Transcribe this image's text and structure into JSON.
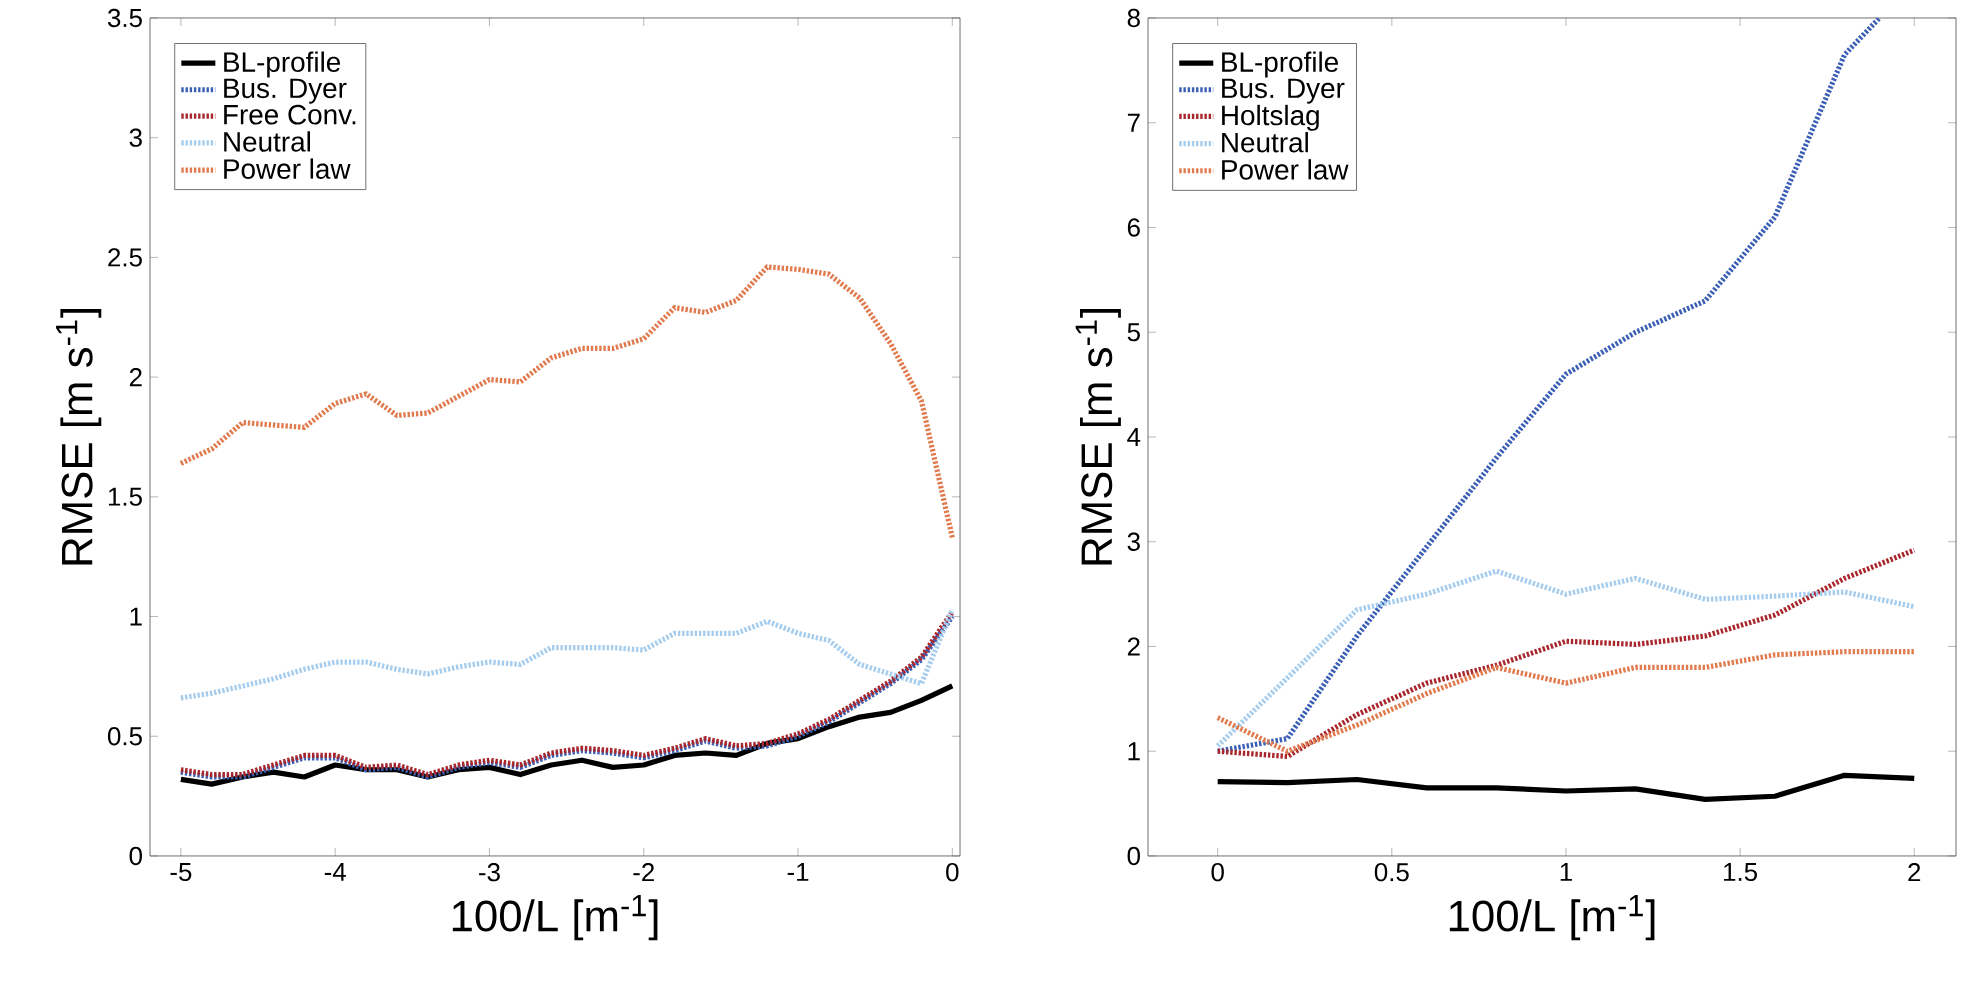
{
  "chart_data": [
    {
      "type": "line",
      "xlabel": "100/L [m$^{-1}$]",
      "ylabel": "RMSE [m s$^{-1}$]",
      "legend": "top left",
      "xlim": [
        -5.2,
        0.05
      ],
      "ylim": [
        0,
        3.5
      ],
      "xticks": [
        -5,
        -4,
        -3,
        -2,
        -1,
        0
      ],
      "yticks": [
        0,
        0.5,
        1,
        1.5,
        2,
        2.5,
        3,
        3.5
      ],
      "x": [
        -5,
        -4.8,
        -4.6,
        -4.4,
        -4.2,
        -4,
        -3.8,
        -3.6,
        -3.4,
        -3.2,
        -3,
        -2.8,
        -2.6,
        -2.4,
        -2.2,
        -2,
        -1.8,
        -1.6,
        -1.4,
        -1.2,
        -1,
        -0.8,
        -0.6,
        -0.4,
        -0.2,
        0
      ],
      "series": [
        {
          "name": "BL-profile",
          "color": "#000000",
          "line_style": "solid",
          "values": [
            0.32,
            0.3,
            0.33,
            0.35,
            0.33,
            0.38,
            0.36,
            0.36,
            0.33,
            0.36,
            0.37,
            0.34,
            0.38,
            0.4,
            0.37,
            0.38,
            0.42,
            0.43,
            0.42,
            0.47,
            0.49,
            0.54,
            0.58,
            0.6,
            0.65,
            0.71
          ]
        },
        {
          "name": "Bus. Dyer",
          "color": "#3a5fb5",
          "line_style": "dotted",
          "values": [
            0.35,
            0.33,
            0.33,
            0.37,
            0.41,
            0.41,
            0.36,
            0.37,
            0.33,
            0.37,
            0.39,
            0.37,
            0.42,
            0.44,
            0.43,
            0.41,
            0.44,
            0.48,
            0.45,
            0.46,
            0.5,
            0.56,
            0.64,
            0.72,
            0.82,
            1.0
          ]
        },
        {
          "name": "Free Conv.",
          "color": "#a8262c",
          "line_style": "dotted",
          "values": [
            0.36,
            0.34,
            0.34,
            0.38,
            0.42,
            0.42,
            0.37,
            0.38,
            0.34,
            0.38,
            0.4,
            0.38,
            0.43,
            0.45,
            0.44,
            0.42,
            0.45,
            0.49,
            0.46,
            0.47,
            0.51,
            0.57,
            0.65,
            0.73,
            0.83,
            1.02
          ]
        },
        {
          "name": "Neutral",
          "color": "#a6cdee",
          "line_style": "dotted",
          "values": [
            0.66,
            0.68,
            0.71,
            0.74,
            0.78,
            0.81,
            0.81,
            0.78,
            0.76,
            0.79,
            0.81,
            0.8,
            0.87,
            0.87,
            0.87,
            0.86,
            0.93,
            0.93,
            0.93,
            0.98,
            0.93,
            0.9,
            0.8,
            0.76,
            0.72,
            1.03
          ]
        },
        {
          "name": "Power law",
          "color": "#e07b4f",
          "line_style": "dotted",
          "values": [
            1.64,
            1.7,
            1.81,
            1.8,
            1.79,
            1.89,
            1.93,
            1.84,
            1.85,
            1.92,
            1.99,
            1.98,
            2.08,
            2.12,
            2.12,
            2.16,
            2.29,
            2.27,
            2.32,
            2.46,
            2.45,
            2.43,
            2.33,
            2.14,
            1.9,
            1.33
          ]
        }
      ]
    },
    {
      "type": "line",
      "xlabel": "100/L [m$^{-1}$]",
      "ylabel": "RMSE [m s$^{-1}$]",
      "legend": "top left",
      "xlim": [
        -0.2,
        2.12
      ],
      "ylim": [
        0,
        8
      ],
      "xticks": [
        0,
        0.5,
        1,
        1.5,
        2
      ],
      "yticks": [
        0,
        1,
        2,
        3,
        4,
        5,
        6,
        7,
        8
      ],
      "x": [
        0,
        0.2,
        0.4,
        0.6,
        0.8,
        1,
        1.2,
        1.4,
        1.6,
        1.8,
        2
      ],
      "series": [
        {
          "name": "BL-profile",
          "color": "#000000",
          "line_style": "solid",
          "values": [
            0.71,
            0.7,
            0.73,
            0.65,
            0.65,
            0.62,
            0.64,
            0.54,
            0.57,
            0.77,
            0.74
          ]
        },
        {
          "name": "Bus. Dyer",
          "color": "#3a5fb5",
          "line_style": "dotted",
          "x": [
            0,
            0.2,
            0.4,
            0.6,
            0.8,
            1,
            1.2,
            1.4,
            1.6,
            1.8,
            1.9
          ],
          "values": [
            1.0,
            1.12,
            2.1,
            2.95,
            3.8,
            4.6,
            5.0,
            5.3,
            6.1,
            7.65,
            8.0
          ]
        },
        {
          "name": "Holtslag",
          "color": "#a8262c",
          "line_style": "dotted",
          "values": [
            1.0,
            0.95,
            1.35,
            1.65,
            1.82,
            2.05,
            2.02,
            2.1,
            2.3,
            2.65,
            2.92
          ]
        },
        {
          "name": "Neutral",
          "color": "#a6cdee",
          "line_style": "dotted",
          "values": [
            1.05,
            1.7,
            2.35,
            2.5,
            2.72,
            2.5,
            2.65,
            2.45,
            2.48,
            2.52,
            2.38
          ]
        },
        {
          "name": "Power law",
          "color": "#e07b4f",
          "line_style": "dotted",
          "values": [
            1.32,
            1.0,
            1.25,
            1.55,
            1.8,
            1.65,
            1.8,
            1.8,
            1.92,
            1.95,
            1.95
          ]
        }
      ]
    }
  ]
}
